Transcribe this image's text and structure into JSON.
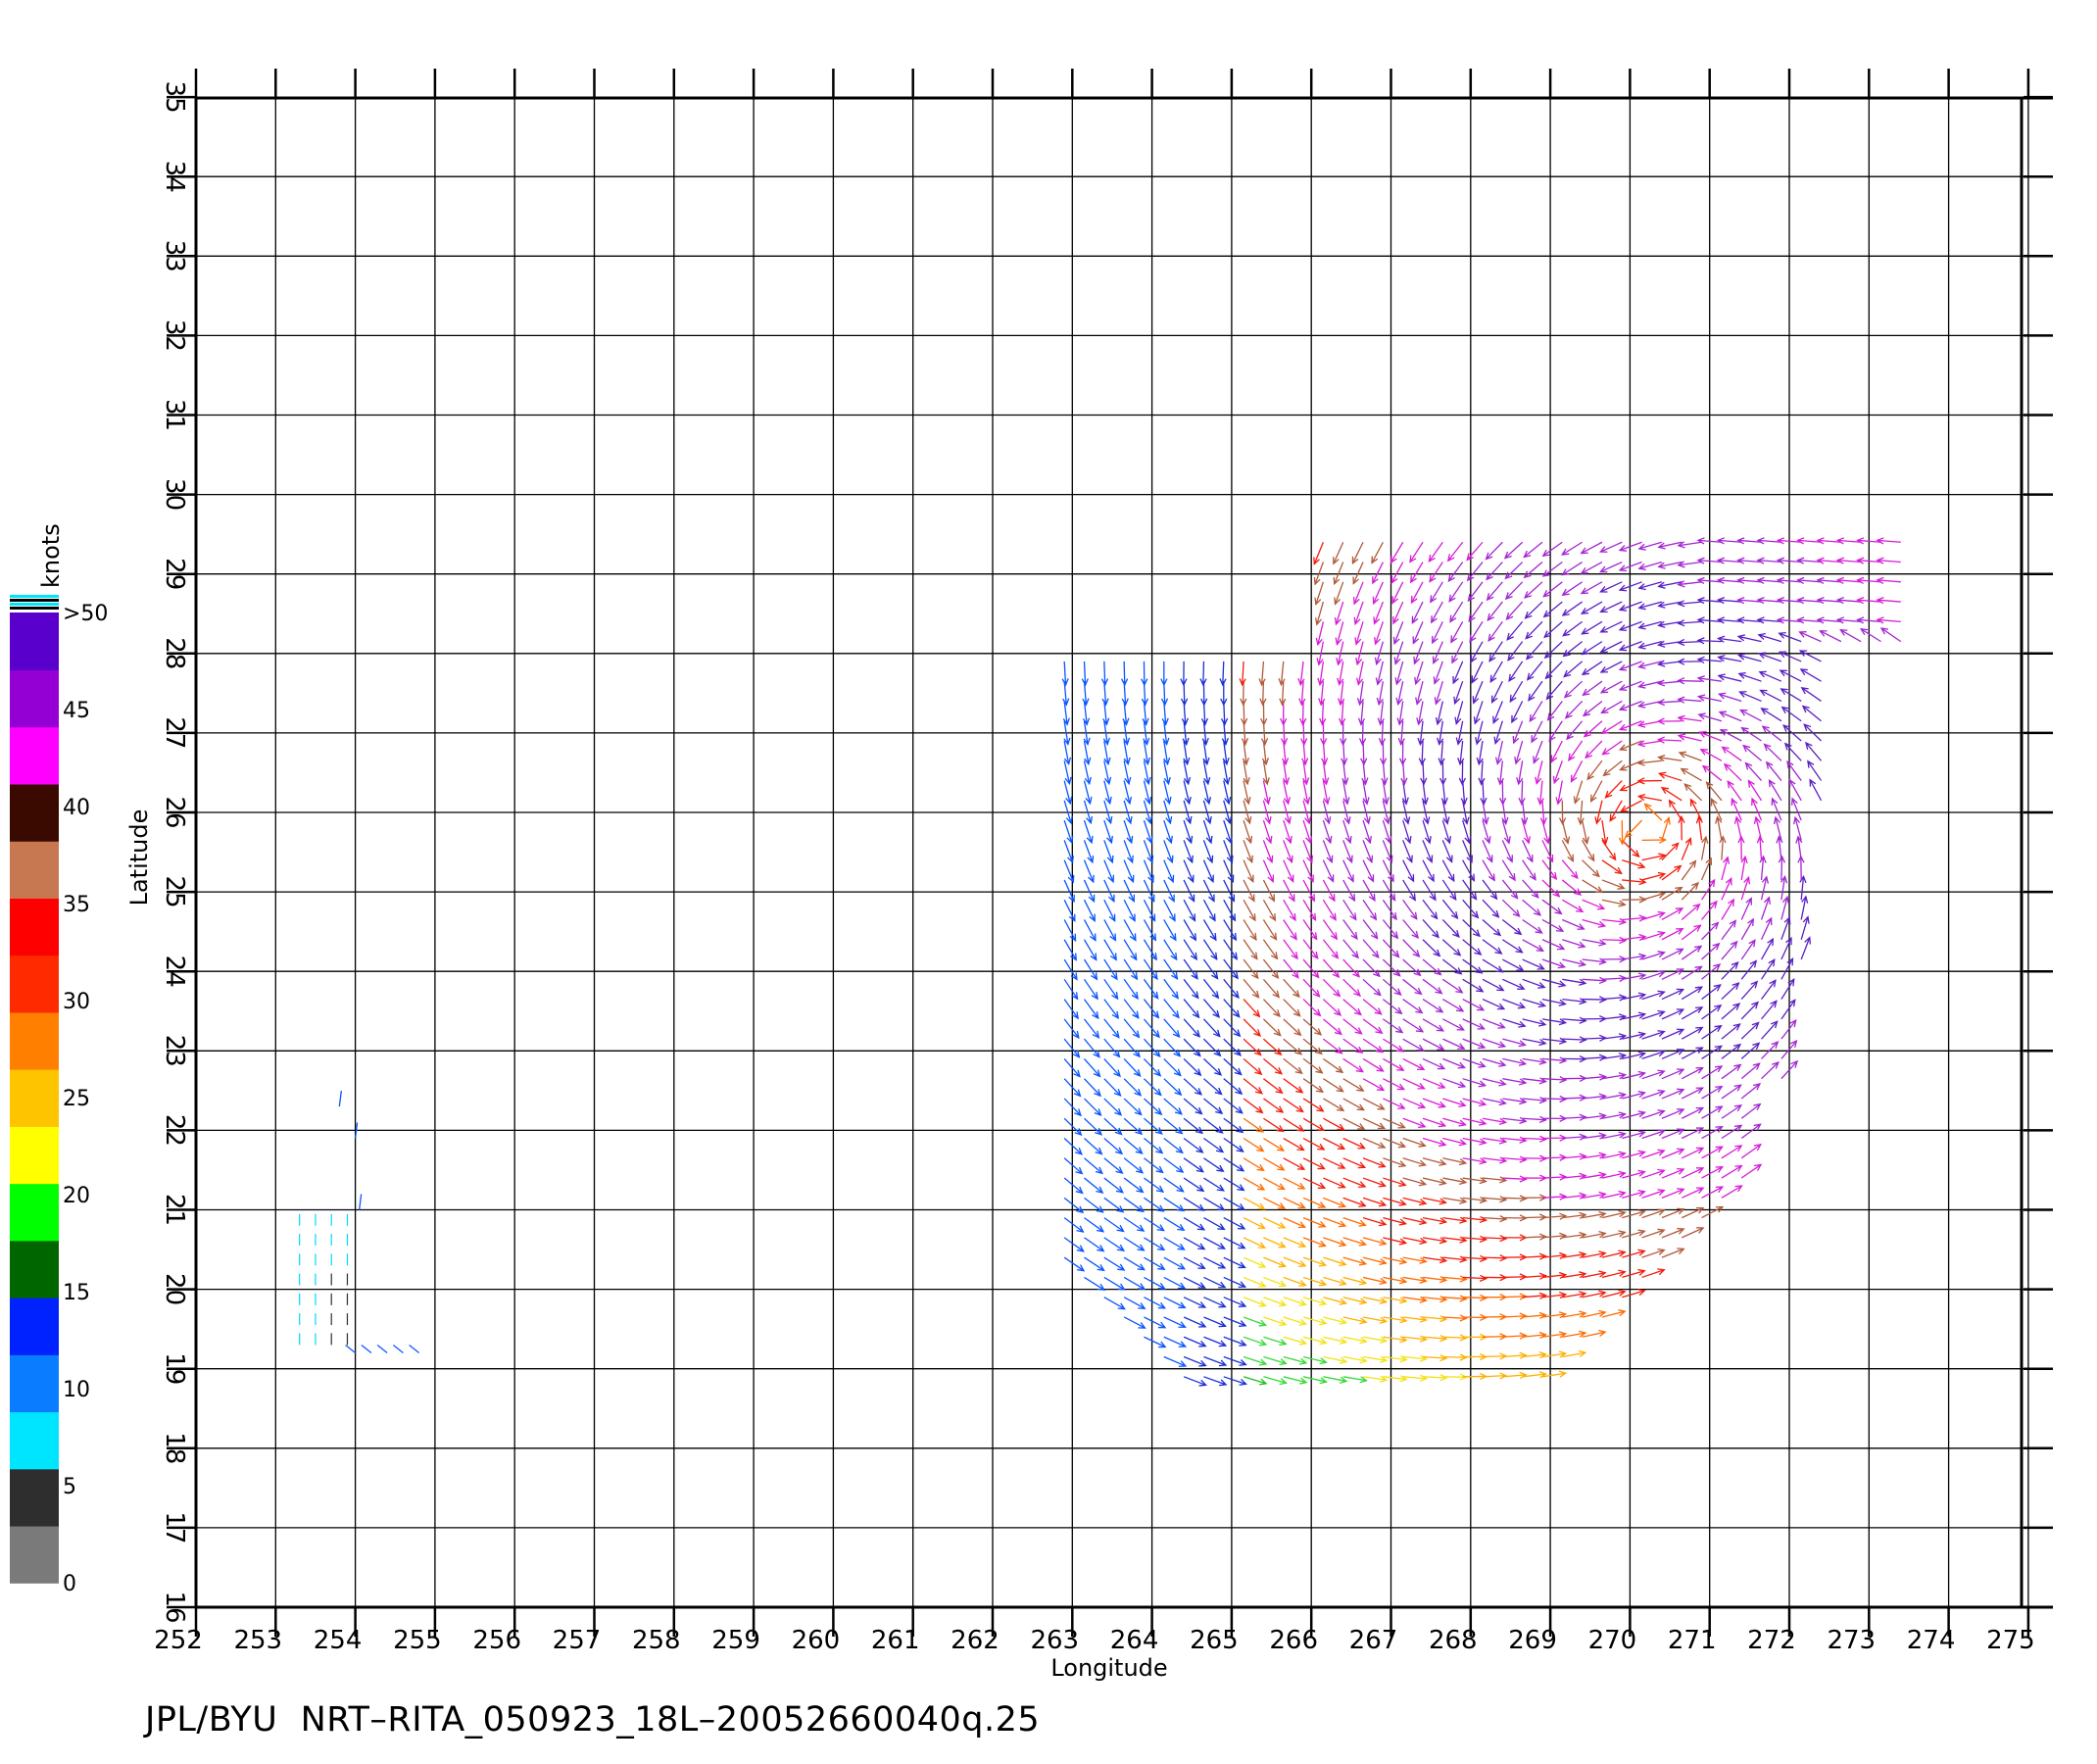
{
  "footer": {
    "text": "JPL/BYU  NRT–RITA_050923_18L–20052660040q.25"
  },
  "chart_data": {
    "type": "vector field (wind barbs)",
    "title": "",
    "xlabel": "Longitude",
    "ylabel": "Latitude",
    "xlim": [
      252,
      275
    ],
    "ylim": [
      16,
      35
    ],
    "x_ticks": [
      "252",
      "253",
      "254",
      "255",
      "256",
      "257",
      "258",
      "259",
      "260",
      "261",
      "262",
      "263",
      "264",
      "265",
      "266",
      "267",
      "268",
      "269",
      "270",
      "271",
      "272",
      "273",
      "274",
      "275"
    ],
    "y_ticks": [
      "16",
      "17",
      "18",
      "19",
      "20",
      "21",
      "22",
      "23",
      "24",
      "25",
      "26",
      "27",
      "28",
      "29",
      "30",
      "31",
      "32",
      "33",
      "34",
      "35"
    ],
    "grid": true,
    "colorbar": {
      "label": "knots",
      "tick_labels": [
        "0",
        "5",
        "10",
        "15",
        "20",
        "25",
        "30",
        "35",
        "40",
        "45",
        ">50"
      ],
      "colors": [
        "#7a7a7a",
        "#2e2e2e",
        "#00e5ff",
        "#0a7cff",
        "#0022ff",
        "#006600",
        "#00ff00",
        "#ffff00",
        "#ffc400",
        "#ff8000",
        "#ff2a00",
        "#ff0000",
        "#c87850",
        "#3a0a00",
        "#ff00ff",
        "#9400d3",
        "#5a00cc"
      ]
    },
    "storm": {
      "name": "RITA",
      "center": [
        270.2,
        25.8
      ]
    },
    "series": []
  }
}
